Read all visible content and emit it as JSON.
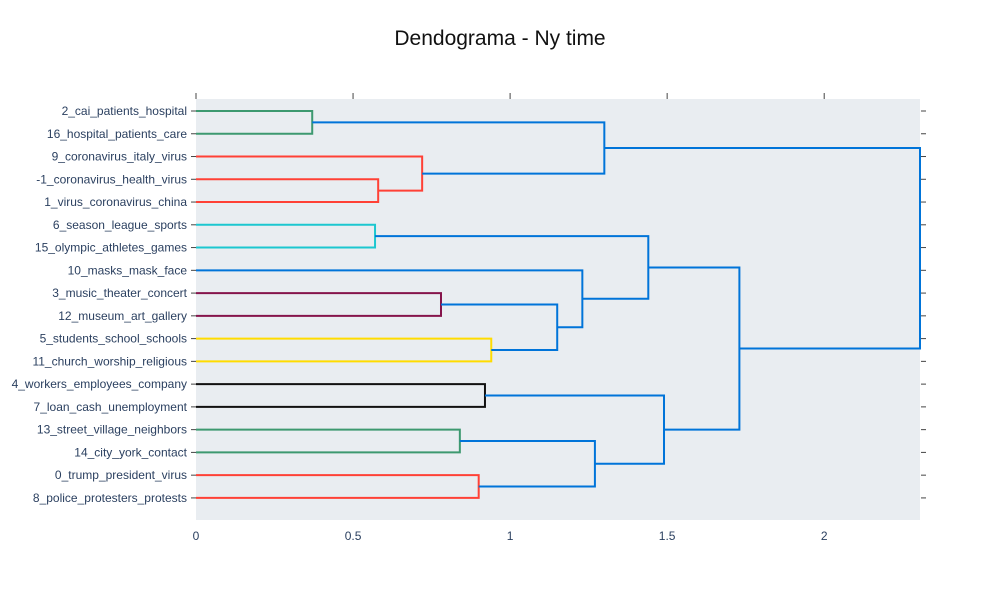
{
  "chart_data": {
    "type": "dendrogram",
    "title": "Dendograma - Ny time",
    "orientation": "horizontal",
    "xlim": [
      0,
      2.305
    ],
    "xticks": [
      "0",
      "0.5",
      "1",
      "1.5",
      "2"
    ],
    "xtick_values": [
      0,
      0.5,
      1,
      1.5,
      2
    ],
    "leaves": [
      "2_cai_patients_hospital",
      "16_hospital_patients_care",
      "9_coronavirus_italy_virus",
      "-1_coronavirus_health_virus",
      "1_virus_coronavirus_china",
      "6_season_league_sports",
      "15_olympic_athletes_games",
      "10_masks_mask_face",
      "3_music_theater_concert",
      "12_museum_art_gallery",
      "5_students_school_schools",
      "11_church_worship_religious",
      "4_workers_employees_company",
      "7_loan_cash_unemployment",
      "13_street_village_neighbors",
      "14_city_york_contact",
      "0_trump_president_virus",
      "8_police_protesters_protests"
    ],
    "merges": [
      {
        "id": "A",
        "children": [
          0,
          1
        ],
        "height": 0.37,
        "color": "#3d9970"
      },
      {
        "id": "B",
        "children": [
          3,
          4
        ],
        "height": 0.58,
        "color": "#ff4136"
      },
      {
        "id": "C",
        "children": [
          2,
          "B"
        ],
        "height": 0.72,
        "color": "#ff4136"
      },
      {
        "id": "D",
        "children": [
          5,
          6
        ],
        "height": 0.57,
        "color": "#1cc7d0"
      },
      {
        "id": "E",
        "children": [
          8,
          9
        ],
        "height": 0.78,
        "color": "#85144b"
      },
      {
        "id": "F",
        "children": [
          10,
          11
        ],
        "height": 0.94,
        "color": "#ffdc00"
      },
      {
        "id": "G",
        "children": [
          12,
          13
        ],
        "height": 0.92,
        "color": "#111111"
      },
      {
        "id": "H",
        "children": [
          14,
          15
        ],
        "height": 0.84,
        "color": "#3d9970"
      },
      {
        "id": "I",
        "children": [
          16,
          17
        ],
        "height": 0.9,
        "color": "#ff4136"
      },
      {
        "id": "J",
        "children": [
          "A",
          "C"
        ],
        "height": 1.3,
        "color": "#0074d9"
      },
      {
        "id": "K",
        "children": [
          "E",
          "F"
        ],
        "height": 1.15,
        "color": "#0074d9"
      },
      {
        "id": "L",
        "children": [
          7,
          "K"
        ],
        "height": 1.23,
        "color": "#0074d9"
      },
      {
        "id": "M",
        "children": [
          "D",
          "L"
        ],
        "height": 1.44,
        "color": "#0074d9"
      },
      {
        "id": "N",
        "children": [
          "H",
          "I"
        ],
        "height": 1.27,
        "color": "#0074d9"
      },
      {
        "id": "O",
        "children": [
          "G",
          "N"
        ],
        "height": 1.49,
        "color": "#0074d9"
      },
      {
        "id": "P",
        "children": [
          "M",
          "O"
        ],
        "height": 1.73,
        "color": "#0074d9"
      },
      {
        "id": "Q",
        "children": [
          "J",
          "P"
        ],
        "height": 2.305,
        "color": "#0074d9"
      }
    ],
    "colors": {
      "plot_background": "#e9edf1",
      "link_default": "#0074d9",
      "tick_text": "#2a3f5f"
    },
    "grid": false
  }
}
